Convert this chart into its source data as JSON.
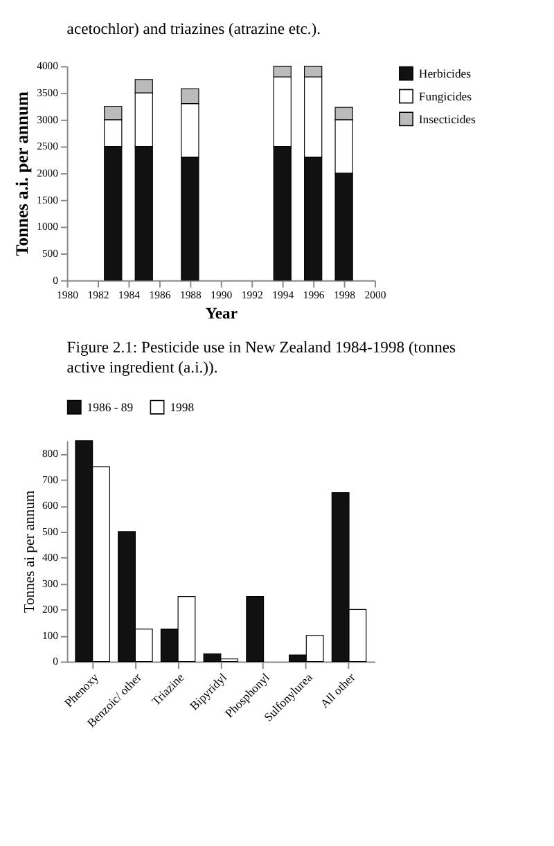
{
  "chart_data": [
    {
      "type": "bar",
      "stacked": true,
      "xlabel": "Year",
      "ylabel": "Tonnes a.i. per annum",
      "annotations": [
        "acetochlor) and triazines (atrazine etc.).",
        "Figure 2.1: Pesticide use in New Zealand 1984-1998 (tonnes active ingredient (a.i.))."
      ],
      "x": [
        1983,
        1985,
        1988,
        1994,
        1996,
        1998
      ],
      "series": [
        {
          "name": "Herbicides",
          "color": "#111111",
          "values": [
            2500,
            2500,
            2300,
            2500,
            2300,
            2000
          ]
        },
        {
          "name": "Fungicides",
          "color": "#ffffff",
          "values": [
            500,
            1000,
            1000,
            1300,
            1500,
            1000
          ]
        },
        {
          "name": "Insecticides",
          "color": "#bbbbbb",
          "values": [
            250,
            250,
            280,
            200,
            200,
            230
          ]
        }
      ],
      "xlim": [
        1980,
        2000
      ],
      "xticks": [
        1980,
        1982,
        1984,
        1986,
        1988,
        1990,
        1992,
        1994,
        1996,
        1998,
        2000
      ],
      "ylim": [
        0,
        4000
      ],
      "yticks": [
        0,
        500,
        1000,
        1500,
        2000,
        2500,
        3000,
        3500,
        4000
      ],
      "grid": false,
      "legend": "right"
    },
    {
      "type": "bar",
      "ylabel": "Tonnes ai per annum",
      "categories": [
        "Phenoxy",
        "Benzoic/ other",
        "Triazine",
        "Bipyridyl",
        "Phosphonyl",
        "Sulfonylurea",
        "All other"
      ],
      "series": [
        {
          "name": "1986 - 89",
          "color": "#111111",
          "values": [
            850,
            500,
            125,
            30,
            250,
            25,
            650
          ]
        },
        {
          "name": "1998",
          "color": "#ffffff",
          "values": [
            750,
            125,
            250,
            10,
            null,
            100,
            200
          ]
        }
      ],
      "ylim": [
        0,
        850
      ],
      "yticks": [
        0,
        100,
        200,
        300,
        400,
        500,
        600,
        700,
        800
      ],
      "grid": false,
      "legend": "top"
    }
  ]
}
